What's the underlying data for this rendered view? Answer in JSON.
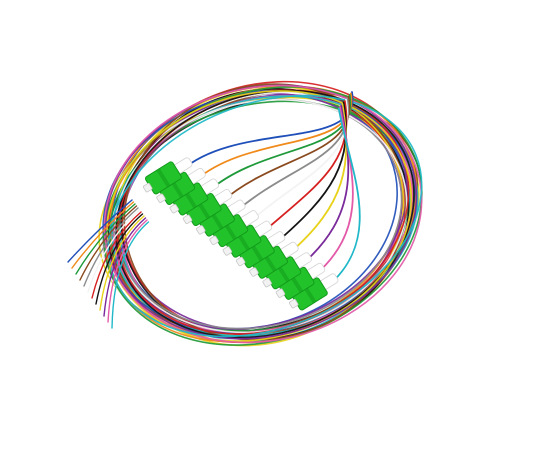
{
  "image": {
    "subject": "fiber-optic-pigtail-bundle",
    "background_color": "#ffffff",
    "connector_color": "#22c32a",
    "connector_dark": "#139a1c",
    "ferrule_color": "#f2f2f2",
    "connector_count": 12,
    "fiber_colors": [
      "#1f4fb8",
      "#f08a1a",
      "#1f9a3a",
      "#8a4a1e",
      "#8c8c8c",
      "#f3f3f3",
      "#d62020",
      "#141414",
      "#e8d21a",
      "#7a2a9a",
      "#e25aa8",
      "#20b8c8"
    ]
  }
}
